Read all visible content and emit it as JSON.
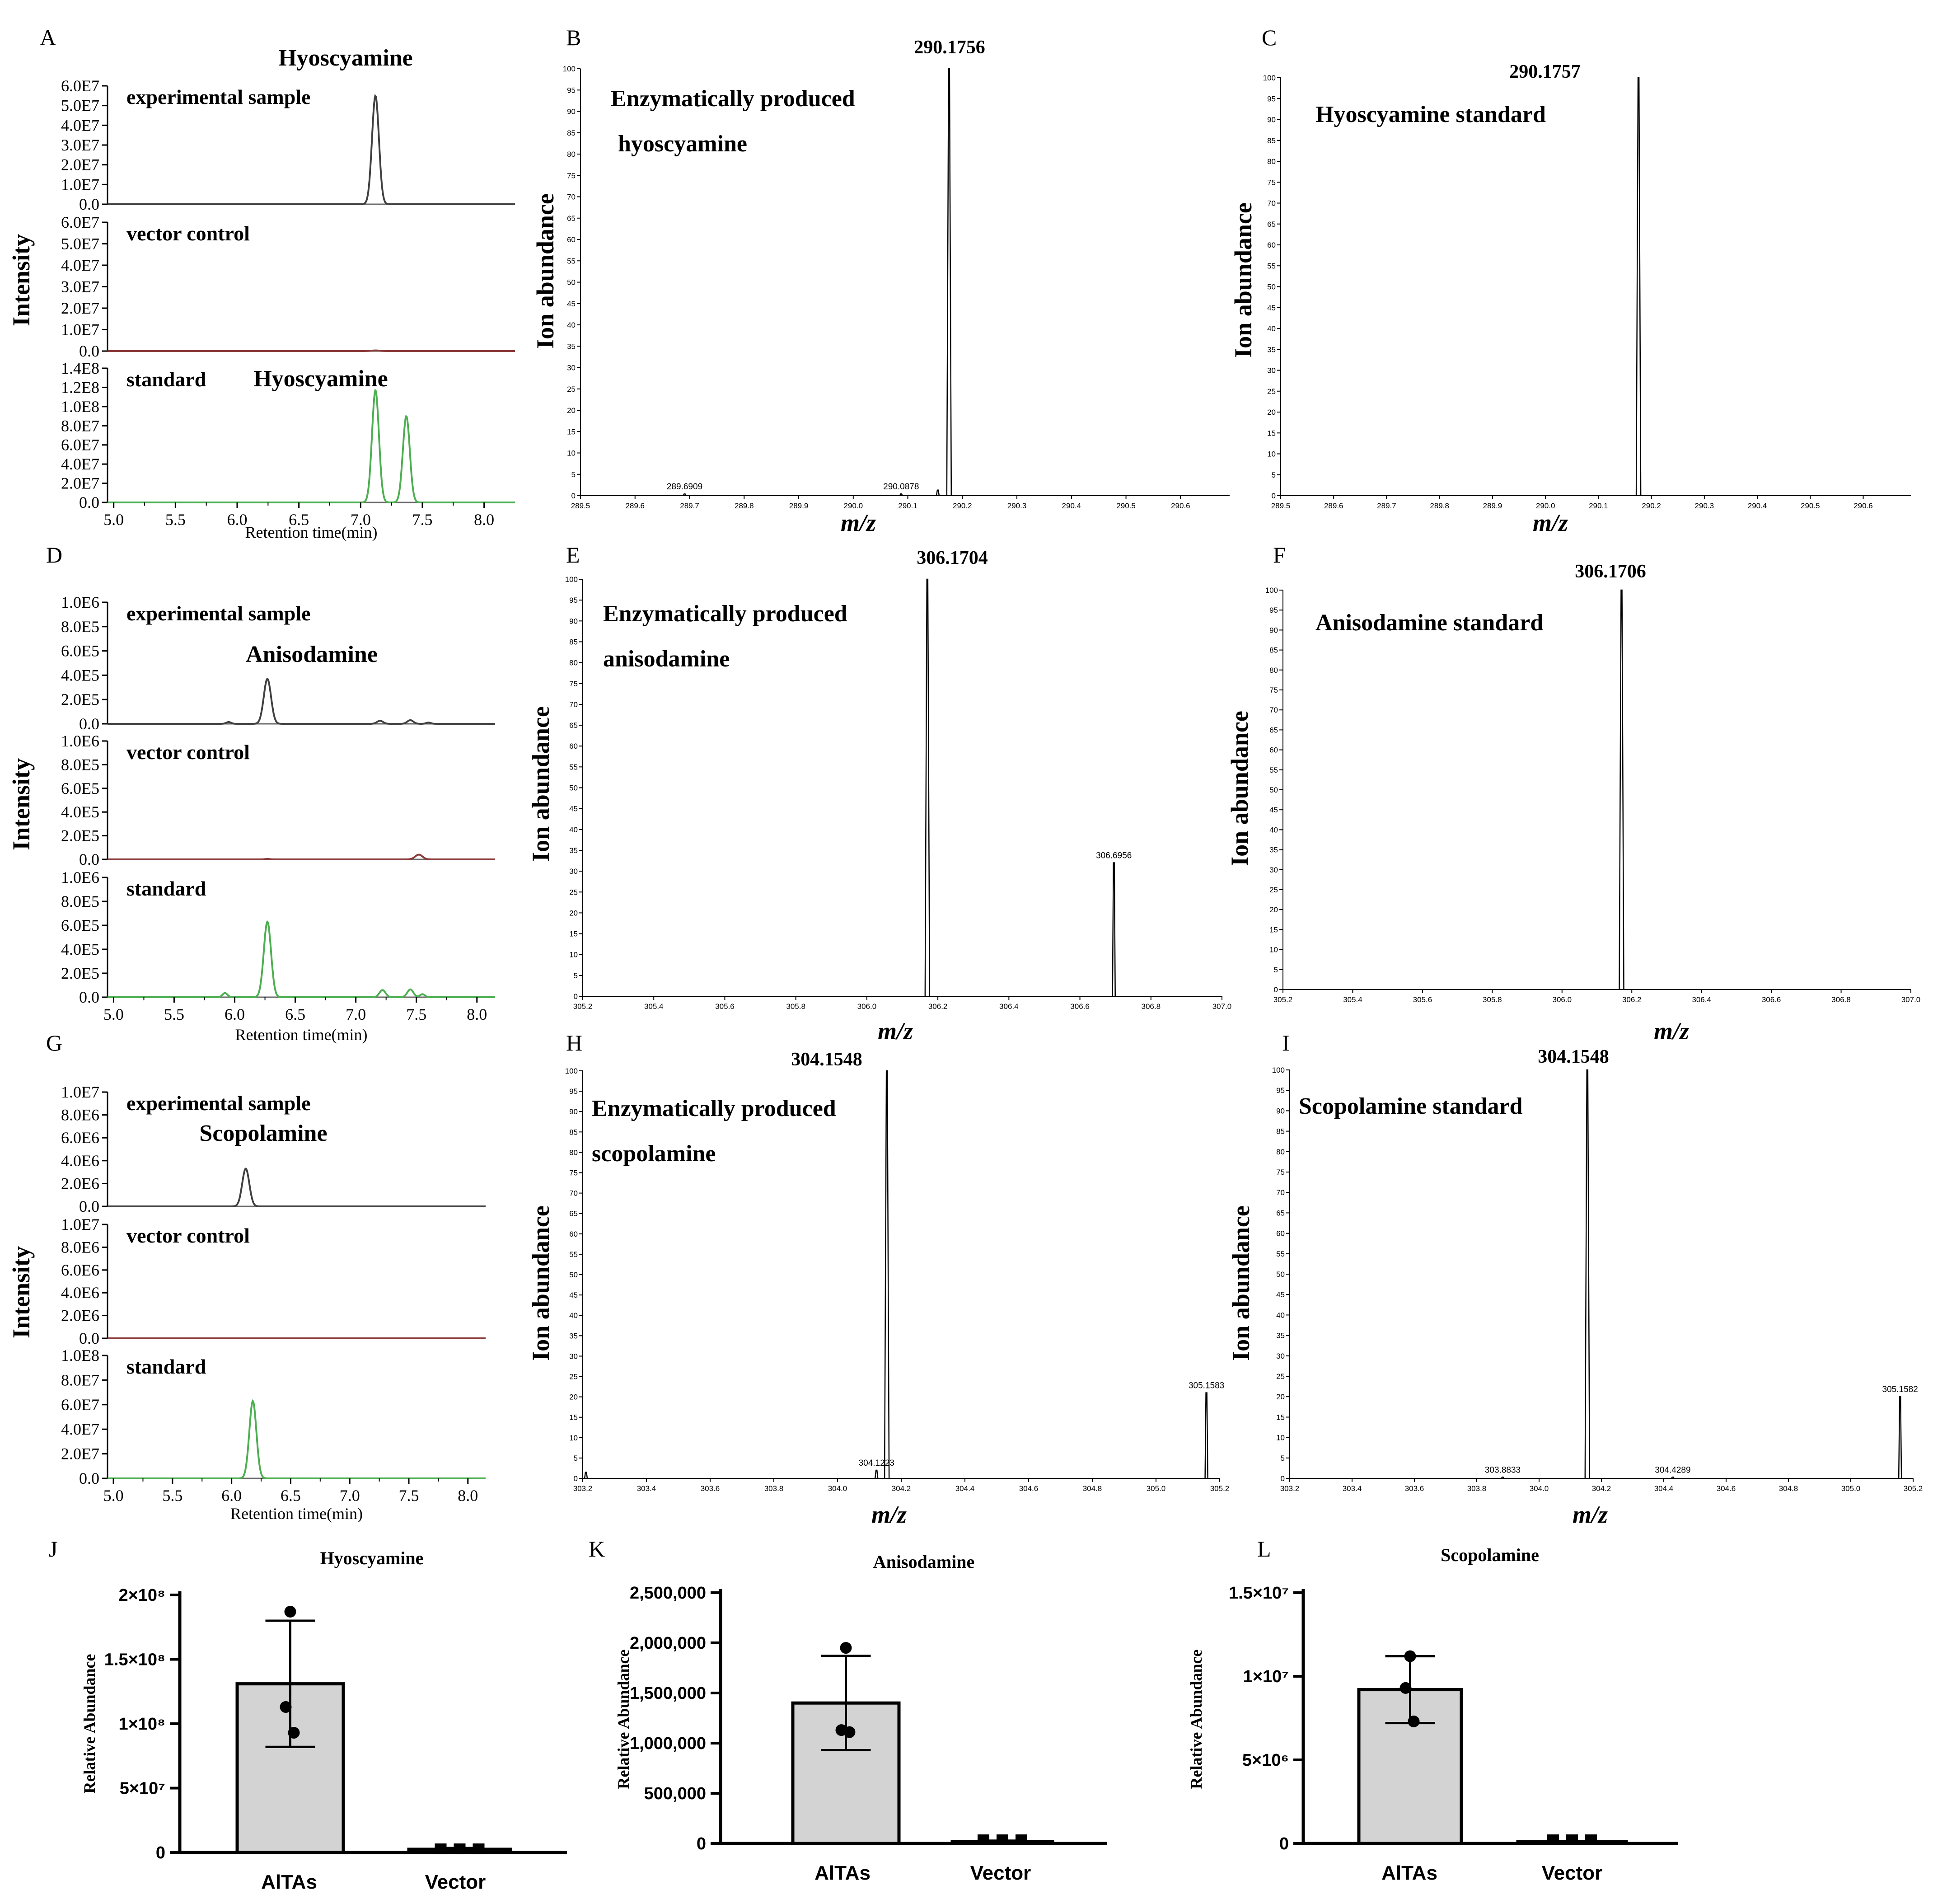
{
  "figure": {
    "chromatograms": [
      {
        "panel": "A",
        "ylabel": "Intensity",
        "xlabel": "Retention time(min)",
        "x_ticks": [
          "5.0",
          "5.5",
          "6.0",
          "6.5",
          "7.0",
          "7.5",
          "8.0"
        ],
        "xlim": [
          4.95,
          8.25
        ],
        "tracks": [
          {
            "label": "experimental sample",
            "color": "#404040",
            "y_ticks": [
              "6.0E7",
              "5.0E7",
              "4.0E7",
              "3.0E7",
              "2.0E7",
              "1.0E7",
              "0.0"
            ],
            "ymax": 60000000.0,
            "compound": "Hyoscyamine",
            "peaks": [
              {
                "rt": 7.12,
                "h": 55000000.0,
                "w": 0.028
              }
            ]
          },
          {
            "label": "vector control",
            "color": "#8b3a3a",
            "y_ticks": [
              "6.0E7",
              "5.0E7",
              "4.0E7",
              "3.0E7",
              "2.0E7",
              "1.0E7",
              "0.0"
            ],
            "ymax": 60000000.0,
            "compound": "",
            "peaks": [
              {
                "rt": 7.12,
                "h": 300000.0,
                "w": 0.03
              }
            ]
          },
          {
            "label": "standard",
            "color": "#4caf50",
            "y_ticks": [
              "1.4E8",
              "1.2E8",
              "1.0E8",
              "8.0E7",
              "6.0E7",
              "4.0E7",
              "2.0E7",
              "0.0"
            ],
            "ymax": 140000000.0,
            "compound": "Hyoscyamine",
            "peaks": [
              {
                "rt": 7.12,
                "h": 117000000.0,
                "w": 0.028
              },
              {
                "rt": 7.37,
                "h": 90000000.0,
                "w": 0.028
              }
            ]
          }
        ]
      },
      {
        "panel": "D",
        "ylabel": "Intensity",
        "xlabel": "Retention time(min)",
        "x_ticks": [
          "5.0",
          "5.5",
          "6.0",
          "6.5",
          "7.0",
          "7.5",
          "8.0"
        ],
        "xlim": [
          4.95,
          8.15
        ],
        "tracks": [
          {
            "label": "experimental sample",
            "color": "#404040",
            "y_ticks": [
              "1.0E6",
              "8.0E5",
              "6.0E5",
              "4.0E5",
              "2.0E5",
              "0.0"
            ],
            "ymax": 1000000.0,
            "compound": "Anisodamine",
            "peaks": [
              {
                "rt": 6.27,
                "h": 370000.0,
                "w": 0.03
              },
              {
                "rt": 5.95,
                "h": 15000.0,
                "w": 0.02
              },
              {
                "rt": 7.2,
                "h": 25000.0,
                "w": 0.025
              },
              {
                "rt": 7.45,
                "h": 30000.0,
                "w": 0.025
              },
              {
                "rt": 7.6,
                "h": 10000.0,
                "w": 0.02
              }
            ]
          },
          {
            "label": "vector control",
            "color": "#8b3a3a",
            "y_ticks": [
              "1.0E6",
              "8.0E5",
              "6.0E5",
              "4.0E5",
              "2.0E5",
              "0.0"
            ],
            "ymax": 1000000.0,
            "compound": "",
            "peaks": [
              {
                "rt": 7.52,
                "h": 40000.0,
                "w": 0.03
              },
              {
                "rt": 6.27,
                "h": 4000.0,
                "w": 0.02
              }
            ]
          },
          {
            "label": "standard",
            "color": "#4caf50",
            "y_ticks": [
              "1.0E6",
              "8.0E5",
              "6.0E5",
              "4.0E5",
              "2.0E5",
              "0.0"
            ],
            "ymax": 1000000.0,
            "compound": "",
            "peaks": [
              {
                "rt": 6.27,
                "h": 630000.0,
                "w": 0.03
              },
              {
                "rt": 5.92,
                "h": 35000.0,
                "w": 0.02
              },
              {
                "rt": 7.22,
                "h": 60000.0,
                "w": 0.025
              },
              {
                "rt": 7.45,
                "h": 65000.0,
                "w": 0.025
              },
              {
                "rt": 7.55,
                "h": 25000.0,
                "w": 0.02
              }
            ]
          }
        ]
      },
      {
        "panel": "G",
        "ylabel": "Intensity",
        "xlabel": "Retention time(min)",
        "x_ticks": [
          "5.0",
          "5.5",
          "6.0",
          "6.5",
          "7.0",
          "7.5",
          "8.0"
        ],
        "xlim": [
          4.95,
          8.15
        ],
        "tracks": [
          {
            "label": "experimental sample",
            "color": "#404040",
            "y_ticks": [
              "1.0E7",
              "8.0E6",
              "6.0E6",
              "4.0E6",
              "2.0E6",
              "0.0"
            ],
            "ymax": 10000000.0,
            "compound": "Scopolamine",
            "peaks": [
              {
                "rt": 6.12,
                "h": 3300000.0,
                "w": 0.03
              }
            ]
          },
          {
            "label": "vector control",
            "color": "#8b3a3a",
            "y_ticks": [
              "1.0E7",
              "8.0E6",
              "6.0E6",
              "4.0E6",
              "2.0E6",
              "0.0"
            ],
            "ymax": 10000000.0,
            "compound": "",
            "peaks": []
          },
          {
            "label": "standard",
            "color": "#4caf50",
            "y_ticks": [
              "1.0E8",
              "8.0E7",
              "6.0E7",
              "4.0E7",
              "2.0E7",
              "0.0"
            ],
            "ymax": 100000000.0,
            "compound": "",
            "peaks": [
              {
                "rt": 6.18,
                "h": 63000000.0,
                "w": 0.03
              }
            ]
          }
        ]
      }
    ],
    "spectra": [
      {
        "panel": "B",
        "title_lines": [
          "Enzymatically produced",
          "hyoscyamine"
        ],
        "ylabel": "Ion abundance",
        "xlabel": "m/z",
        "xlim": [
          289.5,
          290.69
        ],
        "x_ticks": [
          "289.5",
          "289.6",
          "289.7",
          "289.8",
          "289.9",
          "290.0",
          "290.1",
          "290.2",
          "290.3",
          "290.4",
          "290.5",
          "290.6"
        ],
        "main_peak": {
          "mz": 290.1756,
          "label": "290.1756",
          "rel": 100
        },
        "minor_peaks": [
          {
            "mz": 289.6909,
            "label": "289.6909",
            "rel": 0.4
          },
          {
            "mz": 290.0878,
            "label": "290.0878",
            "rel": 0.4
          },
          {
            "mz": 290.155,
            "label": "",
            "rel": 1.3
          }
        ]
      },
      {
        "panel": "C",
        "title_lines": [
          "Hyoscyamine standard"
        ],
        "ylabel": "Ion abundance",
        "xlabel": "m/z",
        "xlim": [
          289.5,
          290.69
        ],
        "x_ticks": [
          "289.5",
          "289.6",
          "289.7",
          "289.8",
          "289.9",
          "290.0",
          "290.1",
          "290.2",
          "290.3",
          "290.4",
          "290.5",
          "290.6"
        ],
        "main_peak": {
          "mz": 290.1757,
          "label": "290.1757",
          "rel": 100
        },
        "minor_peaks": []
      },
      {
        "panel": "E",
        "title_lines": [
          "Enzymatically produced",
          "anisodamine"
        ],
        "ylabel": "Ion abundance",
        "xlabel": "m/z",
        "xlim": [
          305.2,
          307.0
        ],
        "x_ticks": [
          "305.2",
          "305.4",
          "305.6",
          "305.8",
          "306.0",
          "306.2",
          "306.4",
          "306.6",
          "306.8",
          "307.0"
        ],
        "main_peak": {
          "mz": 306.1704,
          "label": "306.1704",
          "rel": 100
        },
        "minor_peaks": [
          {
            "mz": 306.6956,
            "label": "306.6956",
            "rel": 32
          }
        ]
      },
      {
        "panel": "F",
        "title_lines": [
          "Anisodamine standard"
        ],
        "ylabel": "Ion abundance",
        "xlabel": "m/z",
        "xlim": [
          305.2,
          307.0
        ],
        "x_ticks": [
          "305.2",
          "305.4",
          "305.6",
          "305.8",
          "306.0",
          "306.2",
          "306.4",
          "306.6",
          "306.8",
          "307.0"
        ],
        "main_peak": {
          "mz": 306.1706,
          "label": "306.1706",
          "rel": 100
        },
        "minor_peaks": []
      },
      {
        "panel": "H",
        "title_lines": [
          "Enzymatically produced",
          "scopolamine"
        ],
        "ylabel": "Ion abundance",
        "xlabel": "m/z",
        "xlim": [
          303.2,
          305.2
        ],
        "x_ticks": [
          "303.2",
          "303.4",
          "303.6",
          "303.8",
          "304.0",
          "304.2",
          "304.4",
          "304.6",
          "304.8",
          "305.0",
          "305.2"
        ],
        "main_peak": {
          "mz": 304.1548,
          "label": "304.1548",
          "rel": 100
        },
        "minor_peaks": [
          {
            "mz": 304.1223,
            "label": "304.1223",
            "rel": 2
          },
          {
            "mz": 305.1583,
            "label": "305.1583",
            "rel": 21
          },
          {
            "mz": 303.21,
            "label": "",
            "rel": 1.5
          }
        ]
      },
      {
        "panel": "I",
        "title_lines": [
          "Scopolamine standard"
        ],
        "ylabel": "Ion abundance",
        "xlabel": "m/z",
        "xlim": [
          303.2,
          305.2
        ],
        "x_ticks": [
          "303.2",
          "303.4",
          "303.6",
          "303.8",
          "304.0",
          "304.2",
          "304.4",
          "304.6",
          "304.8",
          "305.0",
          "305.2"
        ],
        "main_peak": {
          "mz": 304.1548,
          "label": "304.1548",
          "rel": 100
        },
        "minor_peaks": [
          {
            "mz": 303.8833,
            "label": "303.8833",
            "rel": 0.3
          },
          {
            "mz": 304.4289,
            "label": "304.4289",
            "rel": 0.3
          },
          {
            "mz": 305.1582,
            "label": "305.1582",
            "rel": 20
          }
        ]
      }
    ],
    "spectra_y_ticks": [
      "0",
      "5",
      "10",
      "15",
      "20",
      "25",
      "30",
      "35",
      "40",
      "45",
      "50",
      "55",
      "60",
      "65",
      "70",
      "75",
      "80",
      "85",
      "90",
      "95",
      "100"
    ]
  },
  "chart_data": [
    {
      "type": "bar",
      "panel": "J",
      "title": "Hyoscyamine",
      "ylabel": "Relative Abundance",
      "categories": [
        "AlTAs",
        "Vector"
      ],
      "values": [
        131000000.0,
        2500000.0
      ],
      "error": [
        49000000.0,
        1000000.0
      ],
      "points": [
        [
          187000000.0,
          113000000.0,
          93000000.0
        ],
        [
          2500000.0,
          2500000.0,
          2500000.0
        ]
      ],
      "ylim": [
        0,
        200000000.0
      ],
      "y_ticks": [
        {
          "v": 0,
          "t": "0"
        },
        {
          "v": 50000000.0,
          "t": "5×10⁷"
        },
        {
          "v": 100000000.0,
          "t": "1×10⁸"
        },
        {
          "v": 150000000.0,
          "t": "1.5×10⁸"
        },
        {
          "v": 200000000.0,
          "t": "2×10⁸"
        }
      ]
    },
    {
      "type": "bar",
      "panel": "K",
      "title": "Anisodamine",
      "ylabel": "Relative Abundance",
      "categories": [
        "AlTAs",
        "Vector"
      ],
      "values": [
        1400000,
        20000
      ],
      "error": [
        470000,
        8000
      ],
      "points": [
        [
          1950000,
          1130000,
          1110000
        ],
        [
          20000,
          20000,
          20000
        ]
      ],
      "ylim": [
        0,
        2500000
      ],
      "y_ticks": [
        {
          "v": 0,
          "t": "0"
        },
        {
          "v": 500000,
          "t": "500,000"
        },
        {
          "v": 1000000,
          "t": "1,000,000"
        },
        {
          "v": 1500000,
          "t": "1,500,000"
        },
        {
          "v": 2000000,
          "t": "2,000,000"
        },
        {
          "v": 2500000,
          "t": "2,500,000"
        }
      ]
    },
    {
      "type": "bar",
      "panel": "L",
      "title": "Scopolamine",
      "ylabel": "Relative Abundance",
      "categories": [
        "AlTAs",
        "Vector"
      ],
      "values": [
        9200000.0,
        100000.0
      ],
      "error": [
        2000000.0,
        50000.0
      ],
      "points": [
        [
          11200000.0,
          9300000.0,
          7300000.0
        ],
        [
          100000.0,
          100000.0,
          100000.0
        ]
      ],
      "ylim": [
        0,
        15000000.0
      ],
      "y_ticks": [
        {
          "v": 0,
          "t": "0"
        },
        {
          "v": 5000000.0,
          "t": "5×10⁶"
        },
        {
          "v": 10000000.0,
          "t": "1×10⁷"
        },
        {
          "v": 15000000.0,
          "t": "1.5×10⁷"
        }
      ]
    }
  ]
}
